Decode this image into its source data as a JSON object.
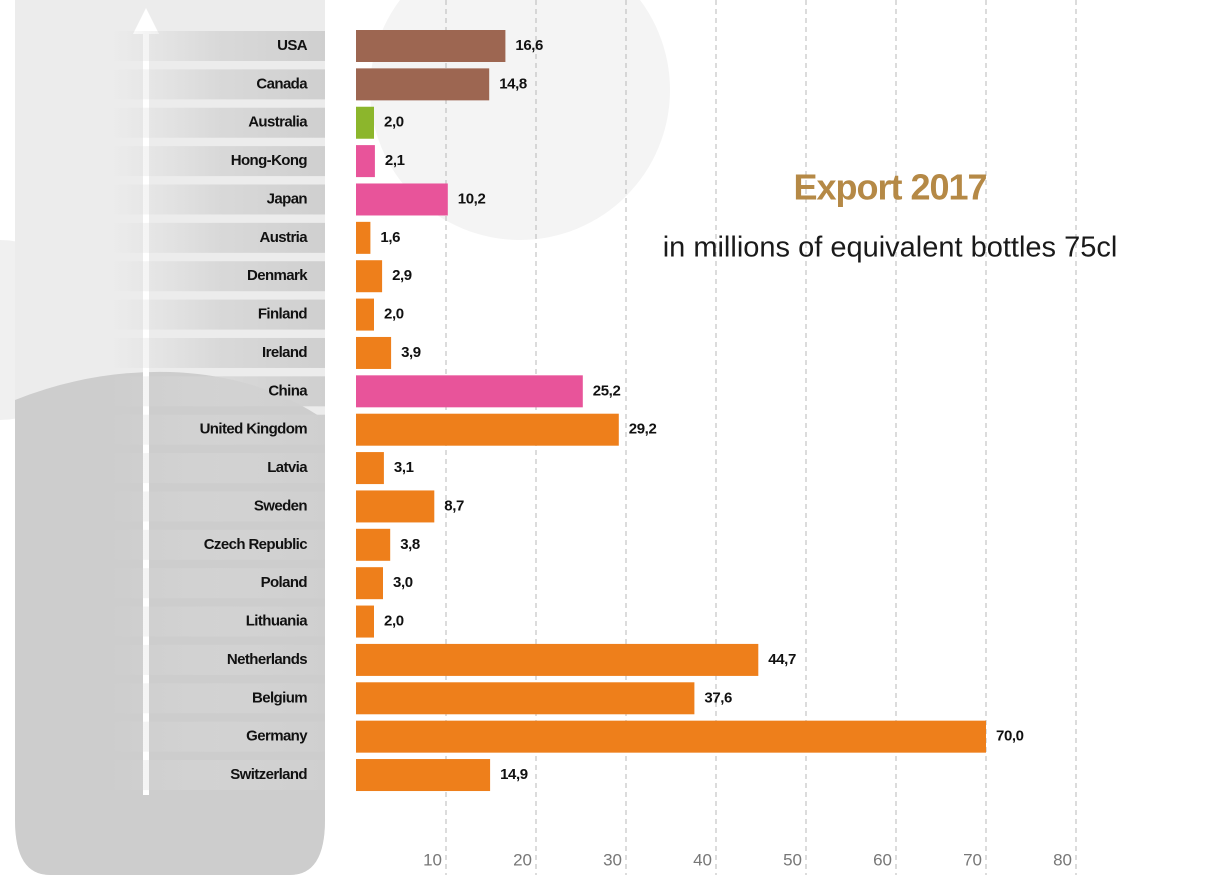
{
  "chart_data": {
    "type": "bar",
    "orientation": "horizontal",
    "title": "Export 2017",
    "subtitle": "in millions of equivalent bottles 75cl",
    "categories": [
      "USA",
      "Canada",
      "Australia",
      "Hong-Kong",
      "Japan",
      "Austria",
      "Denmark",
      "Finland",
      "Ireland",
      "China",
      "United Kingdom",
      "Latvia",
      "Sweden",
      "Czech Republic",
      "Poland",
      "Lithuania",
      "Netherlands",
      "Belgium",
      "Germany",
      "Switzerland"
    ],
    "values": [
      16.6,
      14.8,
      2.0,
      2.1,
      10.2,
      1.6,
      2.9,
      2.0,
      3.9,
      25.2,
      29.2,
      3.1,
      8.7,
      3.8,
      3.0,
      2.0,
      44.7,
      37.6,
      70.0,
      14.9
    ],
    "value_labels": [
      "16,6",
      "14,8",
      "2,0",
      "2,1",
      "10,2",
      "1,6",
      "2,9",
      "2,0",
      "3,9",
      "25,2",
      "29,2",
      "3,1",
      "8,7",
      "3,8",
      "3,0",
      "2,0",
      "44,7",
      "37,6",
      "70,0",
      "14,9"
    ],
    "colors": [
      "#9d6651",
      "#9d6651",
      "#8cb62c",
      "#e8549a",
      "#e8549a",
      "#ee7f1b",
      "#ee7f1b",
      "#ee7f1b",
      "#ee7f1b",
      "#e8549a",
      "#ee7f1b",
      "#ee7f1b",
      "#ee7f1b",
      "#ee7f1b",
      "#ee7f1b",
      "#ee7f1b",
      "#ee7f1b",
      "#ee7f1b",
      "#ee7f1b",
      "#ee7f1b"
    ],
    "xlim": [
      0,
      80
    ],
    "xticks": [
      10,
      20,
      30,
      40,
      50,
      60,
      70,
      80
    ],
    "grid": true
  }
}
